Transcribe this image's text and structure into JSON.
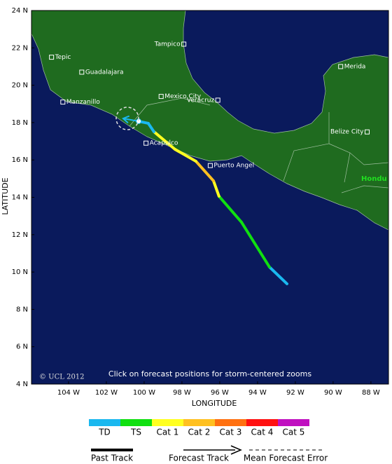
{
  "map": {
    "credit": "© UCL 2012",
    "note": "Click on forecast positions for storm-centered zooms",
    "x_label": "LONGITUDE",
    "y_label": "LATITUDE",
    "region_label": "Hondu",
    "xlim": [
      -105.96,
      -87.07
    ],
    "ylim": [
      4,
      24
    ],
    "xticks": [
      {
        "value": -104,
        "label": "104 W"
      },
      {
        "value": -102,
        "label": "102 W"
      },
      {
        "value": -100,
        "label": "100 W"
      },
      {
        "value": -98,
        "label": "98 W"
      },
      {
        "value": -96,
        "label": "96 W"
      },
      {
        "value": -94,
        "label": "94 W"
      },
      {
        "value": -92,
        "label": "92 W"
      },
      {
        "value": -90,
        "label": "90 W"
      },
      {
        "value": -88,
        "label": "88 W"
      }
    ],
    "yticks": [
      {
        "value": 4,
        "label": "4 N"
      },
      {
        "value": 6,
        "label": "6 N"
      },
      {
        "value": 8,
        "label": "8 N"
      },
      {
        "value": 10,
        "label": "10 N"
      },
      {
        "value": 12,
        "label": "12 N"
      },
      {
        "value": 14,
        "label": "14 N"
      },
      {
        "value": 16,
        "label": "16 N"
      },
      {
        "value": 18,
        "label": "18 N"
      },
      {
        "value": 20,
        "label": "20 N"
      },
      {
        "value": 22,
        "label": "22 N"
      },
      {
        "value": 24,
        "label": "24 N"
      }
    ],
    "cities": [
      {
        "name": "Tepic",
        "lon": -104.9,
        "lat": 21.5,
        "side": "right"
      },
      {
        "name": "Guadalajara",
        "lon": -103.3,
        "lat": 20.7,
        "side": "right"
      },
      {
        "name": "Manzanillo",
        "lon": -104.3,
        "lat": 19.1,
        "side": "right"
      },
      {
        "name": "Tampico",
        "lon": -97.9,
        "lat": 22.2,
        "side": "left"
      },
      {
        "name": "Mexico City",
        "lon": -99.1,
        "lat": 19.4,
        "side": "right"
      },
      {
        "name": "Veracruz",
        "lon": -96.1,
        "lat": 19.2,
        "side": "left"
      },
      {
        "name": "Acapulco",
        "lon": -99.9,
        "lat": 16.9,
        "side": "right"
      },
      {
        "name": "Puerto Angel",
        "lon": -96.5,
        "lat": 15.7,
        "side": "right"
      },
      {
        "name": "Merida",
        "lon": -89.6,
        "lat": 21.0,
        "side": "right"
      },
      {
        "name": "Belize City",
        "lon": -88.2,
        "lat": 17.5,
        "side": "left"
      }
    ],
    "track": [
      {
        "lon": -92.44,
        "lat": 9.37,
        "cat": 0
      },
      {
        "lon": -93.37,
        "lat": 10.27,
        "cat": 0
      },
      {
        "lon": -94.85,
        "lat": 12.67,
        "cat": 1
      },
      {
        "lon": -96.04,
        "lat": 14.06,
        "cat": 1
      },
      {
        "lon": -96.33,
        "lat": 14.88,
        "cat": 2
      },
      {
        "lon": -97.26,
        "lat": 15.93,
        "cat": 3
      },
      {
        "lon": -98.37,
        "lat": 16.57,
        "cat": 2
      },
      {
        "lon": -99.48,
        "lat": 17.51,
        "cat": 2
      },
      {
        "lon": -99.78,
        "lat": 17.96,
        "cat": 0
      },
      {
        "lon": -100.29,
        "lat": 18.07,
        "cat": 0
      }
    ],
    "forecast_track": [
      {
        "lon": -100.29,
        "lat": 18.07
      },
      {
        "lon": -101.11,
        "lat": 18.22
      }
    ]
  },
  "legend": {
    "categories": [
      {
        "name": "TD",
        "color": "#1ab8ef"
      },
      {
        "name": "TS",
        "color": "#10e010"
      },
      {
        "name": "Cat 1",
        "color": "#ffff20"
      },
      {
        "name": "Cat 2",
        "color": "#ffc020"
      },
      {
        "name": "Cat 3",
        "color": "#ff7010"
      },
      {
        "name": "Cat 4",
        "color": "#ff1010"
      },
      {
        "name": "Cat 5",
        "color": "#c010c0"
      }
    ],
    "past_track": "Past Track",
    "forecast_track": "Forecast Track",
    "mean_error": "Mean Forecast Error"
  }
}
